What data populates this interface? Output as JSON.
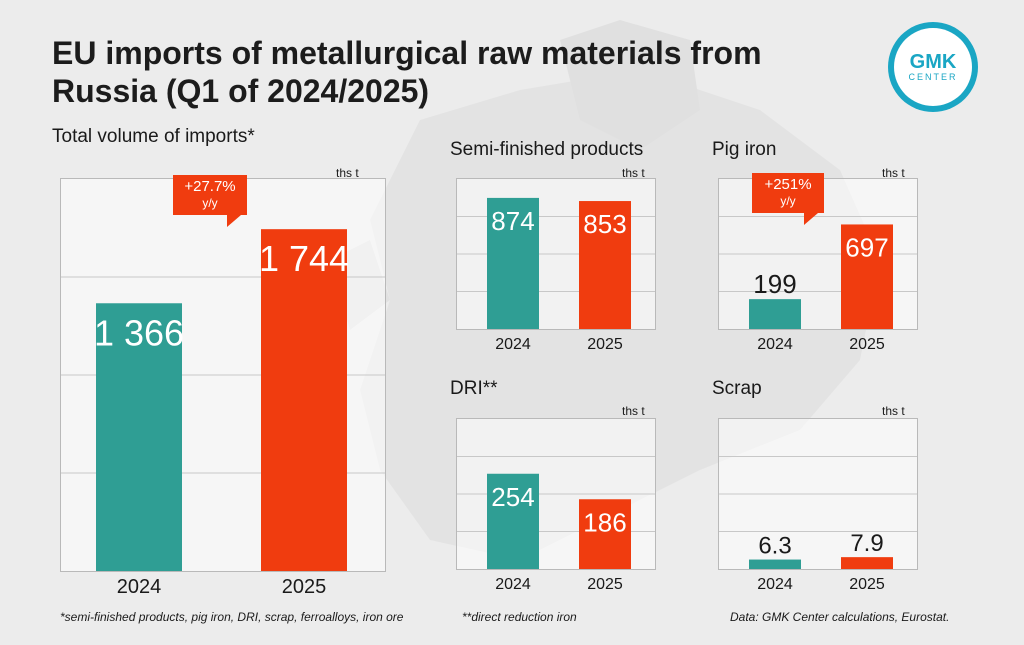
{
  "title": "EU imports of metallurgical raw materials from Russia (Q1 of 2024/2025)",
  "logo": {
    "main": "GMK",
    "sub": "CENTER"
  },
  "colors": {
    "y2024": "#2f9e94",
    "y2025": "#f03c0f",
    "badge": "#f03c0f"
  },
  "charts": {
    "total": {
      "title": "Total volume of imports*",
      "unit": "ths t",
      "badge_value": "+27.7%",
      "badge_unit": "y/y"
    },
    "semi": {
      "title": "Semi-finished products",
      "unit": "ths t"
    },
    "pig": {
      "title": "Pig iron",
      "unit": "ths t",
      "badge_value": "+251%",
      "badge_unit": "y/y"
    },
    "dri": {
      "title": "DRI**",
      "unit": "ths t"
    },
    "scrap": {
      "title": "Scrap",
      "unit": "ths t"
    }
  },
  "footnotes": {
    "left": "*semi-finished products, pig iron, DRI, scrap, ferroalloys, iron ore",
    "middle": "**direct reduction iron",
    "right": "Data: GMK Center calculations, Eurostat."
  },
  "chart_data": [
    {
      "type": "bar",
      "title": "Total volume of imports*",
      "ylabel": "ths t",
      "categories": [
        "2024",
        "2025"
      ],
      "values": [
        1366,
        1744
      ],
      "labels": [
        "1 366",
        "1 744"
      ],
      "ylim": [
        0,
        2000
      ]
    },
    {
      "type": "bar",
      "title": "Semi-finished products",
      "ylabel": "ths t",
      "categories": [
        "2024",
        "2025"
      ],
      "values": [
        874,
        853
      ],
      "labels": [
        "874",
        "853"
      ],
      "ylim": [
        0,
        1000
      ]
    },
    {
      "type": "bar",
      "title": "Pig iron",
      "ylabel": "ths t",
      "categories": [
        "2024",
        "2025"
      ],
      "values": [
        199,
        697
      ],
      "labels": [
        "199",
        "697"
      ],
      "ylim": [
        0,
        1000
      ]
    },
    {
      "type": "bar",
      "title": "DRI**",
      "ylabel": "ths t",
      "categories": [
        "2024",
        "2025"
      ],
      "values": [
        254,
        186
      ],
      "labels": [
        "254",
        "186"
      ],
      "ylim": [
        0,
        400
      ]
    },
    {
      "type": "bar",
      "title": "Scrap",
      "ylabel": "ths t",
      "categories": [
        "2024",
        "2025"
      ],
      "values": [
        6.3,
        7.9
      ],
      "labels": [
        "6.3",
        "7.9"
      ],
      "ylim": [
        0,
        100
      ]
    }
  ]
}
